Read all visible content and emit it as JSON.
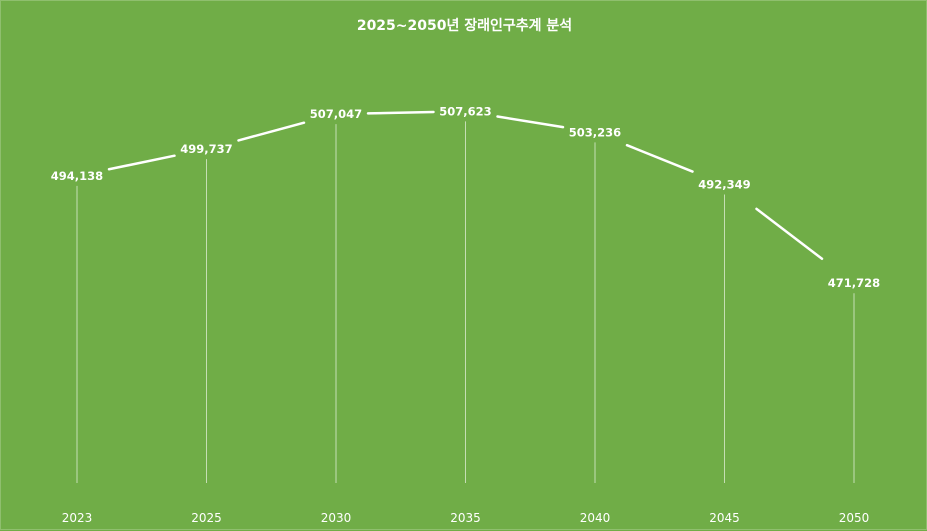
{
  "chart_data": {
    "type": "line",
    "title": "2025~2050년 장래인구추계 분석",
    "categories": [
      "2023",
      "2025",
      "2030",
      "2035",
      "2040",
      "2045",
      "2050"
    ],
    "series": [
      {
        "values": [
          494138,
          499737,
          507047,
          507623,
          503236,
          492349,
          471728
        ],
        "labels": [
          "494,138",
          "499,737",
          "507,047",
          "507,623",
          "503,236",
          "492,349",
          "471,728"
        ]
      }
    ],
    "ylim": [
      430000,
      515000
    ],
    "grid": false,
    "drop_lines": true,
    "colors": {
      "background": "#70AD47",
      "line": "#ffffff"
    }
  }
}
